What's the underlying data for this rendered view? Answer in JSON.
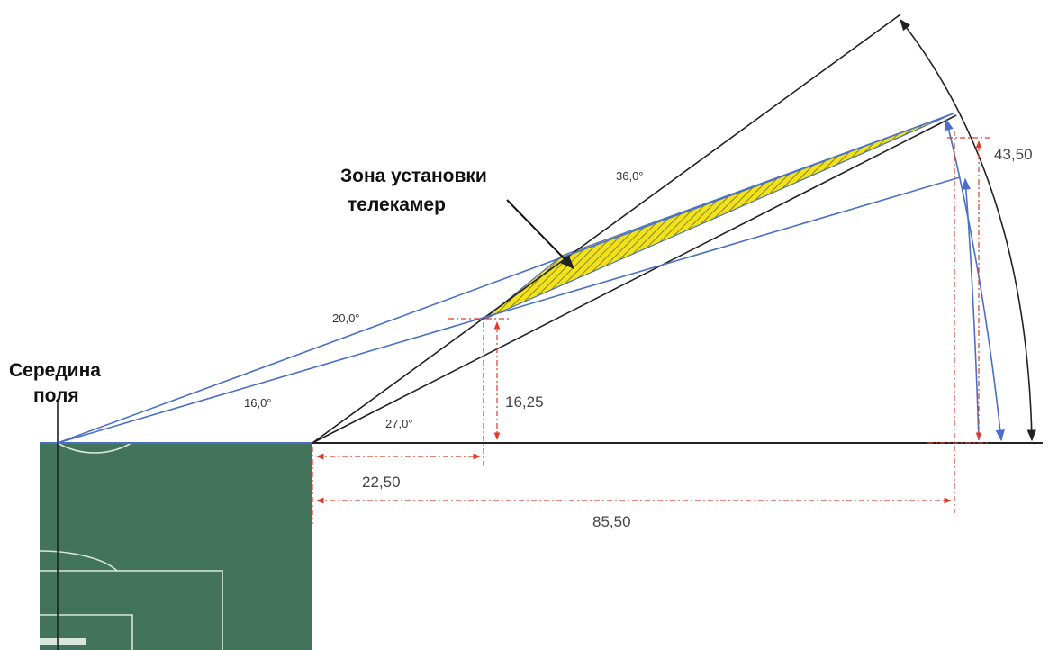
{
  "labels": {
    "zone_line1": "Зона установки",
    "zone_line2": "телекамер",
    "midfield_line1": "Середина",
    "midfield_line2": "поля"
  },
  "angles": {
    "a36": "36,0°",
    "a20": "20,0°",
    "a16": "16,0°",
    "a27": "27,0°"
  },
  "dimensions": {
    "d1625": "16,25",
    "d4350": "43,50",
    "d2250": "22,50",
    "d8550": "85,50"
  },
  "colors": {
    "field": "#41745a",
    "field_lines": "#d9e6dd",
    "zone_fill": "#f2e21a",
    "zone_hatch": "#6a6a28",
    "blue_line": "#4a6fc6",
    "black_line": "#222222",
    "dimension": "#e03a2a"
  }
}
